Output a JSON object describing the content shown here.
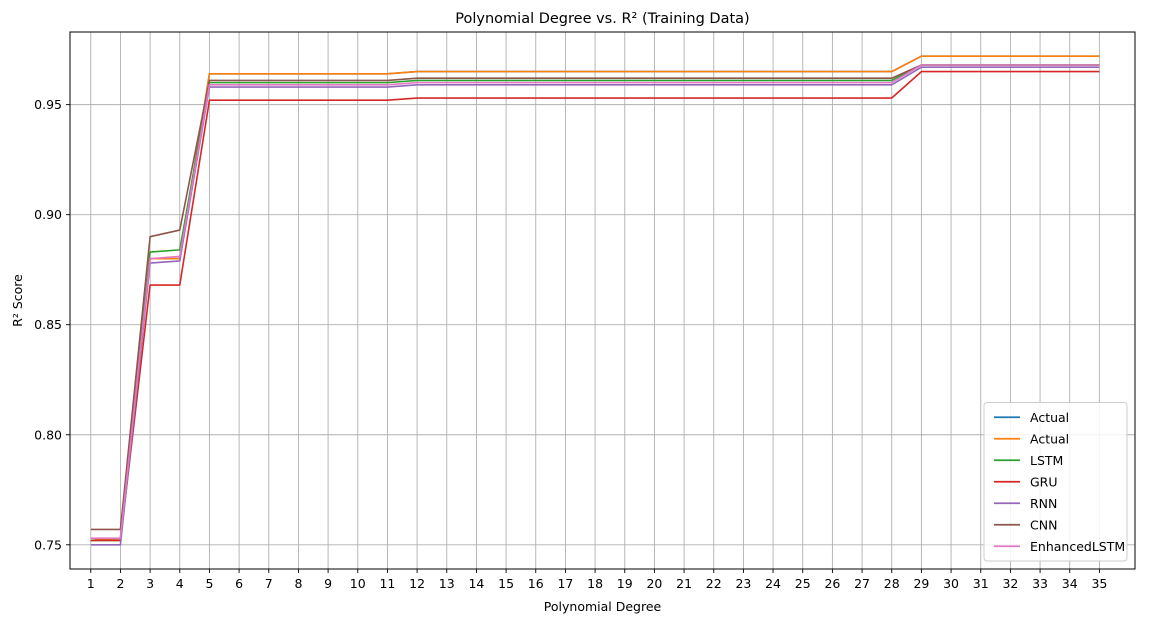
{
  "chart_data": {
    "type": "line",
    "title": "Polynomial Degree vs. R² (Training Data)",
    "xlabel": "Polynomial Degree",
    "ylabel": "R² Score",
    "x": [
      1,
      2,
      3,
      4,
      5,
      6,
      7,
      8,
      9,
      10,
      11,
      12,
      13,
      14,
      15,
      16,
      17,
      18,
      19,
      20,
      21,
      22,
      23,
      24,
      25,
      26,
      27,
      28,
      29,
      30,
      31,
      32,
      33,
      34,
      35
    ],
    "xlim": [
      0.3,
      36.2
    ],
    "ylim": [
      0.739,
      0.983
    ],
    "yticks": [
      0.75,
      0.8,
      0.85,
      0.9,
      0.95
    ],
    "ytick_labels": [
      "0.75",
      "0.80",
      "0.85",
      "0.90",
      "0.95"
    ],
    "grid": true,
    "legend_position": "bottom-right",
    "series": [
      {
        "name": "Actual",
        "color": "#1f77b4",
        "values": [
          0.752,
          0.753,
          0.88,
          0.88,
          0.964,
          0.964,
          0.964,
          0.964,
          0.964,
          0.964,
          0.964,
          0.965,
          0.965,
          0.965,
          0.965,
          0.965,
          0.965,
          0.965,
          0.965,
          0.965,
          0.965,
          0.965,
          0.965,
          0.965,
          0.965,
          0.965,
          0.965,
          0.965,
          0.972,
          0.972,
          0.972,
          0.972,
          0.972,
          0.972,
          0.972
        ]
      },
      {
        "name": "Actual",
        "color": "#ff7f0e",
        "values": [
          0.752,
          0.753,
          0.88,
          0.88,
          0.964,
          0.964,
          0.964,
          0.964,
          0.964,
          0.964,
          0.964,
          0.965,
          0.965,
          0.965,
          0.965,
          0.965,
          0.965,
          0.965,
          0.965,
          0.965,
          0.965,
          0.965,
          0.965,
          0.965,
          0.965,
          0.965,
          0.965,
          0.965,
          0.972,
          0.972,
          0.972,
          0.972,
          0.972,
          0.972,
          0.972
        ]
      },
      {
        "name": "LSTM",
        "color": "#2ca02c",
        "values": [
          0.752,
          0.752,
          0.883,
          0.884,
          0.96,
          0.96,
          0.96,
          0.96,
          0.96,
          0.96,
          0.96,
          0.961,
          0.961,
          0.961,
          0.961,
          0.961,
          0.961,
          0.961,
          0.961,
          0.961,
          0.961,
          0.961,
          0.961,
          0.961,
          0.961,
          0.961,
          0.961,
          0.961,
          0.968,
          0.968,
          0.968,
          0.968,
          0.968,
          0.968,
          0.968
        ]
      },
      {
        "name": "GRU",
        "color": "#d62728",
        "values": [
          0.752,
          0.752,
          0.868,
          0.868,
          0.952,
          0.952,
          0.952,
          0.952,
          0.952,
          0.952,
          0.952,
          0.953,
          0.953,
          0.953,
          0.953,
          0.953,
          0.953,
          0.953,
          0.953,
          0.953,
          0.953,
          0.953,
          0.953,
          0.953,
          0.953,
          0.953,
          0.953,
          0.953,
          0.965,
          0.965,
          0.965,
          0.965,
          0.965,
          0.965,
          0.965
        ]
      },
      {
        "name": "RNN",
        "color": "#9467bd",
        "values": [
          0.75,
          0.75,
          0.878,
          0.879,
          0.958,
          0.958,
          0.958,
          0.958,
          0.958,
          0.958,
          0.958,
          0.959,
          0.959,
          0.959,
          0.959,
          0.959,
          0.959,
          0.959,
          0.959,
          0.959,
          0.959,
          0.959,
          0.959,
          0.959,
          0.959,
          0.959,
          0.959,
          0.959,
          0.967,
          0.967,
          0.967,
          0.967,
          0.967,
          0.967,
          0.967
        ]
      },
      {
        "name": "CNN",
        "color": "#8c564b",
        "values": [
          0.757,
          0.757,
          0.89,
          0.893,
          0.961,
          0.961,
          0.961,
          0.961,
          0.961,
          0.961,
          0.961,
          0.962,
          0.962,
          0.962,
          0.962,
          0.962,
          0.962,
          0.962,
          0.962,
          0.962,
          0.962,
          0.962,
          0.962,
          0.962,
          0.962,
          0.962,
          0.962,
          0.962,
          0.968,
          0.968,
          0.968,
          0.968,
          0.968,
          0.968,
          0.968
        ]
      },
      {
        "name": "EnhancedLSTM",
        "color": "#e377c2",
        "values": [
          0.753,
          0.753,
          0.88,
          0.881,
          0.959,
          0.959,
          0.959,
          0.959,
          0.959,
          0.959,
          0.959,
          0.96,
          0.96,
          0.96,
          0.96,
          0.96,
          0.96,
          0.96,
          0.96,
          0.96,
          0.96,
          0.96,
          0.96,
          0.96,
          0.96,
          0.96,
          0.96,
          0.96,
          0.968,
          0.968,
          0.968,
          0.968,
          0.968,
          0.968,
          0.968
        ]
      }
    ]
  }
}
